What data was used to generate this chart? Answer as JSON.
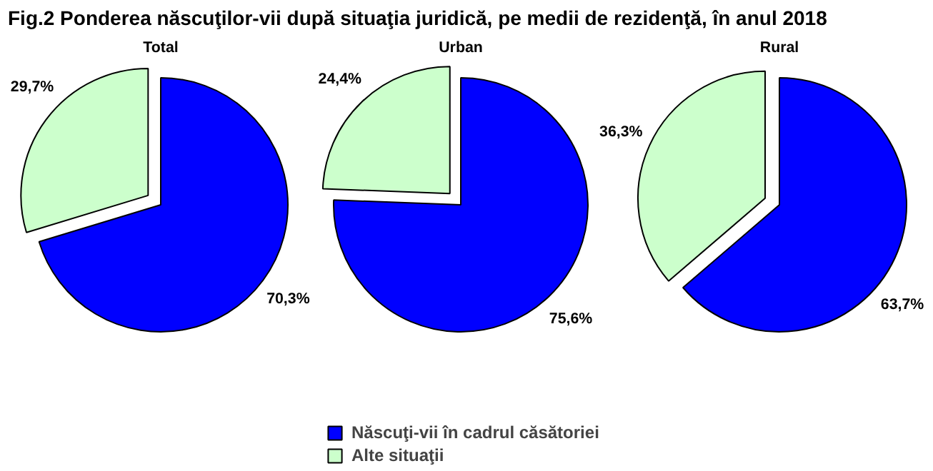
{
  "chart_data": [
    {
      "type": "pie",
      "title": "Fig.2 Ponderea născuţilor-vii după situaţia juridică, pe medii de rezidenţă, în anul 2018",
      "subtitle": "Total",
      "categories": [
        "Născuţi-vii în cadrul căsătoriei",
        "Alte situaţii"
      ],
      "values": [
        70.3,
        29.7
      ],
      "colors": [
        "#0000ff",
        "#ccffcc"
      ],
      "value_labels": [
        "70,3%",
        "29,7%"
      ],
      "legend": "bottom"
    },
    {
      "type": "pie",
      "title": "Urban",
      "categories": [
        null,
        null
      ],
      "values": [
        75.6,
        24.4
      ],
      "colors": [
        "#0000ff",
        "#ccffcc"
      ],
      "value_labels": [
        "75,6%",
        "24,4%"
      ]
    },
    {
      "type": "pie",
      "title": "Rural",
      "categories": [
        null,
        null
      ],
      "values": [
        63.7,
        36.3
      ],
      "colors": [
        "#0000ff",
        "#ccffcc"
      ],
      "value_labels": [
        "63,7%",
        "36,3%"
      ]
    }
  ]
}
